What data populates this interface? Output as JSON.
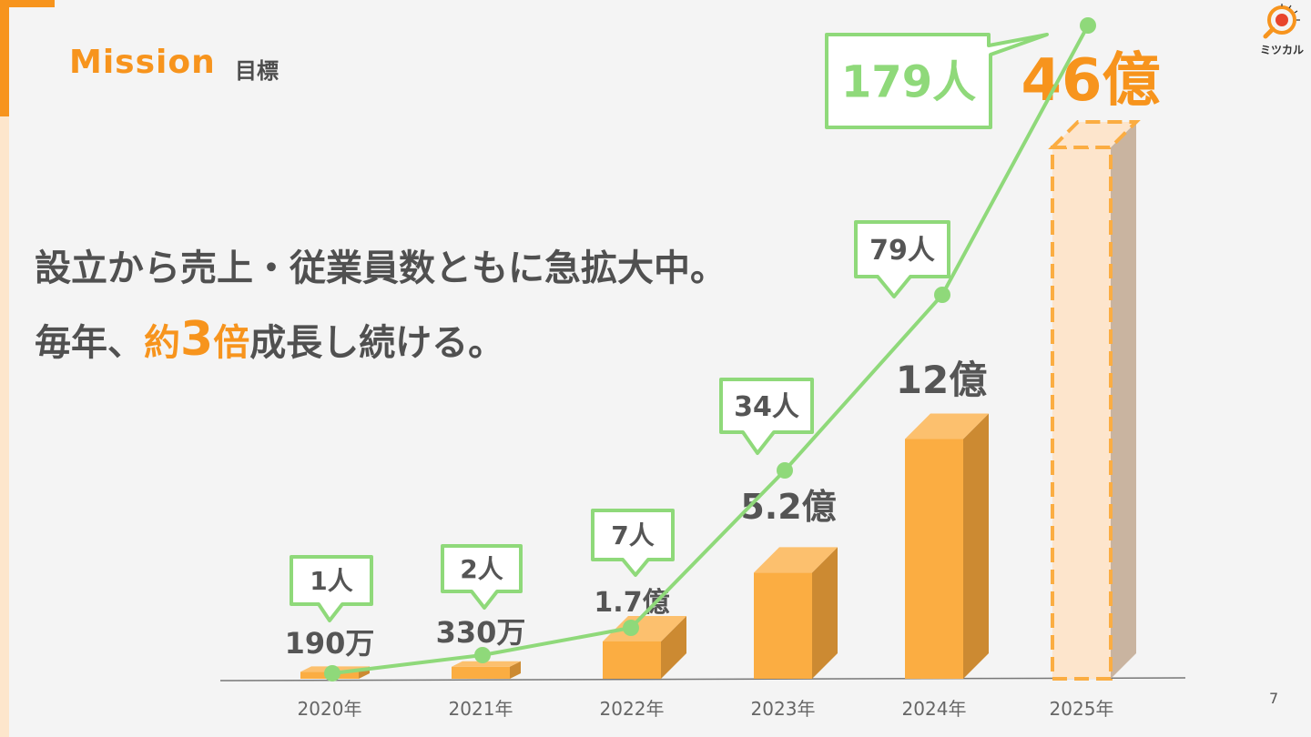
{
  "header": {
    "title_en": "Mission",
    "title_jp": "目標"
  },
  "headline": {
    "line1": "設立から売上・従業員数ともに急拡大中。",
    "line2_pre": "毎年、",
    "line2_hl_a": "約",
    "line2_hl_b": "3",
    "line2_hl_c": "倍",
    "line2_post": "成長し続ける。"
  },
  "logo": {
    "text": "ミツカル",
    "icon": "magnifier-logo-icon"
  },
  "page_number": "7",
  "colors": {
    "accent": "#f7941d",
    "bar": "#fbad42",
    "bar_side": "#cc8a32",
    "line": "#8fd97a",
    "text": "#505050"
  },
  "chart_data": {
    "type": "bar",
    "categories": [
      "2020年",
      "2021年",
      "2022年",
      "2023年",
      "2024年",
      "2025年"
    ],
    "series": [
      {
        "values": [
          0.019,
          0.033,
          1.7,
          5.2,
          12,
          46
        ],
        "labels": [
          "190万",
          "330万",
          "1.7億",
          "5.2億",
          "12億",
          "46億"
        ],
        "projected": [
          false,
          false,
          false,
          false,
          false,
          true
        ]
      },
      {
        "type": "line",
        "values": [
          1,
          2,
          7,
          34,
          79,
          179
        ],
        "labels": [
          "1人",
          "2人",
          "7人",
          "34人",
          "79人",
          "179人"
        ]
      }
    ],
    "grid": false
  }
}
